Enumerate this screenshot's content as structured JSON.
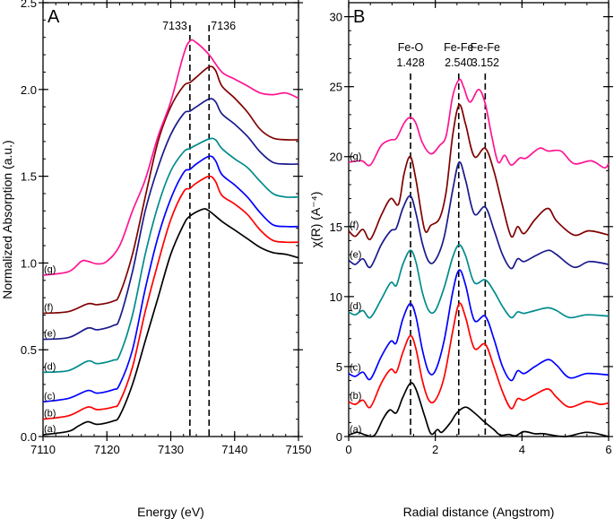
{
  "chart_data": [
    {
      "type": "line",
      "panel_label": "A",
      "xlabel": "Energy (eV)",
      "ylabel": "Normalized Absorption (a.u.)",
      "xlim": [
        7110,
        7150
      ],
      "ylim": [
        0,
        2.5
      ],
      "xticks": [
        7110,
        7120,
        7130,
        7140,
        7150
      ],
      "yticks": [
        "0.0",
        "0.5",
        "1.0",
        "1.5",
        "2.0",
        "2.5"
      ],
      "grid": false,
      "annotations": [
        {
          "x": 7133,
          "label": "7133"
        },
        {
          "x": 7136,
          "label": "7136"
        }
      ],
      "series": [
        {
          "label": "(a)",
          "color": "#000000",
          "x": [
            7110,
            7114,
            7115.5,
            7117,
            7118.5,
            7121,
            7122,
            7124,
            7126,
            7128,
            7130,
            7132,
            7133,
            7135,
            7136,
            7138,
            7140,
            7142,
            7144,
            7146,
            7148,
            7150
          ],
          "y": [
            0.01,
            0.03,
            0.06,
            0.085,
            0.07,
            0.09,
            0.12,
            0.3,
            0.55,
            0.8,
            1.05,
            1.22,
            1.27,
            1.31,
            1.3,
            1.24,
            1.19,
            1.14,
            1.09,
            1.06,
            1.05,
            1.03
          ]
        },
        {
          "label": "(b)",
          "color": "#ff0000",
          "x": [
            7110,
            7114,
            7117,
            7118.5,
            7121,
            7122,
            7124,
            7126,
            7128,
            7130,
            7132,
            7133,
            7134,
            7136,
            7137,
            7138,
            7140,
            7142,
            7144,
            7146,
            7148,
            7150
          ],
          "y": [
            0.1,
            0.12,
            0.17,
            0.155,
            0.17,
            0.2,
            0.4,
            0.72,
            1.0,
            1.25,
            1.41,
            1.43,
            1.46,
            1.5,
            1.47,
            1.39,
            1.34,
            1.28,
            1.19,
            1.13,
            1.12,
            1.12
          ]
        },
        {
          "label": "(c)",
          "color": "#0000ff",
          "x": [
            7110,
            7114,
            7117,
            7118.5,
            7121,
            7122,
            7124,
            7126,
            7128,
            7130,
            7132,
            7133,
            7134,
            7136,
            7137,
            7138,
            7140,
            7142,
            7144,
            7146,
            7148,
            7150
          ],
          "y": [
            0.2,
            0.22,
            0.265,
            0.25,
            0.27,
            0.3,
            0.5,
            0.85,
            1.15,
            1.37,
            1.52,
            1.54,
            1.57,
            1.615,
            1.59,
            1.51,
            1.45,
            1.38,
            1.29,
            1.22,
            1.21,
            1.21
          ]
        },
        {
          "label": "(d)",
          "color": "#008b8b",
          "x": [
            7110,
            7114,
            7117,
            7118.5,
            7121,
            7122,
            7124,
            7126,
            7128,
            7130,
            7132,
            7133,
            7134,
            7136,
            7137,
            7138,
            7140,
            7142,
            7144,
            7146,
            7148,
            7150
          ],
          "y": [
            0.37,
            0.38,
            0.435,
            0.42,
            0.44,
            0.47,
            0.7,
            1.05,
            1.33,
            1.53,
            1.64,
            1.66,
            1.68,
            1.715,
            1.71,
            1.66,
            1.6,
            1.55,
            1.47,
            1.4,
            1.38,
            1.38
          ]
        },
        {
          "label": "(e)",
          "color": "#1a1a8c",
          "x": [
            7110,
            7114,
            7117,
            7118.5,
            7121,
            7122,
            7124,
            7126,
            7128,
            7130,
            7132,
            7133,
            7134,
            7136,
            7137,
            7138,
            7140,
            7142,
            7144,
            7146,
            7148,
            7150
          ],
          "y": [
            0.56,
            0.57,
            0.625,
            0.615,
            0.64,
            0.68,
            0.95,
            1.3,
            1.55,
            1.74,
            1.86,
            1.875,
            1.9,
            1.945,
            1.93,
            1.86,
            1.8,
            1.73,
            1.64,
            1.58,
            1.57,
            1.57
          ]
        },
        {
          "label": "(f)",
          "color": "#800000",
          "x": [
            7110,
            7114,
            7117,
            7118.5,
            7121,
            7122,
            7124,
            7126,
            7128,
            7130,
            7132,
            7133,
            7134,
            7136,
            7137,
            7138,
            7140,
            7142,
            7144,
            7146,
            7148,
            7150
          ],
          "y": [
            0.71,
            0.72,
            0.765,
            0.76,
            0.78,
            0.82,
            1.05,
            1.38,
            1.7,
            1.9,
            2.02,
            2.04,
            2.07,
            2.13,
            2.11,
            2.02,
            1.95,
            1.87,
            1.77,
            1.72,
            1.71,
            1.71
          ]
        },
        {
          "label": "(g)",
          "color": "#ff1493",
          "x": [
            7110,
            7114,
            7116,
            7117,
            7118.5,
            7120,
            7122,
            7124,
            7126,
            7128,
            7130,
            7132,
            7133,
            7134,
            7136,
            7138,
            7140,
            7142,
            7144,
            7146,
            7148,
            7150
          ],
          "y": [
            0.93,
            0.95,
            1.01,
            1.01,
            0.995,
            1.01,
            1.1,
            1.3,
            1.48,
            1.73,
            1.93,
            2.2,
            2.28,
            2.27,
            2.2,
            2.1,
            2.06,
            2.02,
            1.98,
            1.97,
            1.98,
            1.95
          ]
        }
      ]
    },
    {
      "type": "line",
      "panel_label": "B",
      "xlabel": "Radial distance (Angstrom)",
      "ylabel": "χ(R) (A⁻⁴)",
      "xlim": [
        0,
        6
      ],
      "ylim": [
        0,
        31
      ],
      "xticks": [
        0,
        2,
        4,
        6
      ],
      "yticks": [
        0,
        5,
        10,
        15,
        20,
        25,
        30
      ],
      "grid": false,
      "annotations": [
        {
          "x": 1.428,
          "label": "Fe-O",
          "value": "1.428"
        },
        {
          "x": 2.54,
          "label": "Fe-Fe",
          "value": "2.540"
        },
        {
          "x": 3.152,
          "label": "Fe-Fe",
          "value": "3.152"
        }
      ],
      "series": [
        {
          "label": "(a)",
          "color": "#000000",
          "x": [
            0,
            0.2,
            0.4,
            0.6,
            0.8,
            0.95,
            1.1,
            1.25,
            1.42,
            1.55,
            1.75,
            1.9,
            2.05,
            2.15,
            2.35,
            2.5,
            2.7,
            2.9,
            3.15,
            3.35,
            3.5,
            3.7,
            3.85,
            4.05,
            4.3,
            4.5,
            5,
            5.5,
            6
          ],
          "y": [
            0.1,
            0.3,
            0.1,
            0.1,
            1.3,
            1.9,
            1.7,
            2.8,
            3.8,
            3.4,
            1.5,
            0.2,
            0.5,
            0.3,
            1.0,
            1.7,
            2.1,
            1.7,
            1.0,
            0.5,
            0.1,
            0.15,
            0.05,
            0.35,
            0.2,
            0.2,
            0,
            0.3,
            0
          ]
        },
        {
          "label": "(b)",
          "color": "#ff0000",
          "x": [
            0,
            0.15,
            0.33,
            0.5,
            0.75,
            0.97,
            1.1,
            1.25,
            1.42,
            1.55,
            1.7,
            1.85,
            2.0,
            2.2,
            2.4,
            2.55,
            2.7,
            2.9,
            3.15,
            3.35,
            3.55,
            3.75,
            3.9,
            4.05,
            4.3,
            4.6,
            4.8,
            5.1,
            5.5,
            5.8,
            6
          ],
          "y": [
            2.5,
            2.3,
            2.6,
            2.1,
            3.8,
            4.8,
            4.6,
            6.0,
            7.2,
            6.3,
            4.0,
            2.6,
            2.6,
            4.2,
            7.5,
            9.5,
            8.5,
            6.3,
            6.6,
            5.0,
            3.2,
            2.0,
            2.7,
            2.6,
            3.0,
            3.4,
            2.8,
            2.1,
            2.5,
            2.3,
            2.4
          ]
        },
        {
          "label": "(c)",
          "color": "#0000ff",
          "x": [
            0,
            0.15,
            0.33,
            0.5,
            0.75,
            0.97,
            1.1,
            1.25,
            1.42,
            1.55,
            1.7,
            1.85,
            2.0,
            2.2,
            2.4,
            2.55,
            2.7,
            2.9,
            3.15,
            3.35,
            3.55,
            3.75,
            3.9,
            4.05,
            4.3,
            4.6,
            4.8,
            5.1,
            5.5,
            6
          ],
          "y": [
            4.5,
            4.3,
            4.6,
            4.1,
            5.7,
            6.8,
            6.7,
            8.4,
            9.5,
            8.6,
            6.2,
            4.6,
            4.7,
            6.8,
            10.3,
            11.9,
            10.8,
            8.3,
            8.6,
            7.0,
            5.0,
            4.0,
            4.7,
            4.5,
            5.0,
            5.5,
            5.1,
            4.2,
            4.5,
            4.4
          ]
        },
        {
          "label": "(d)",
          "color": "#008b8b",
          "x": [
            0,
            0.15,
            0.33,
            0.5,
            0.75,
            0.97,
            1.1,
            1.25,
            1.42,
            1.55,
            1.7,
            1.85,
            2.0,
            2.2,
            2.4,
            2.55,
            2.7,
            2.9,
            3.15,
            3.35,
            3.55,
            3.75,
            3.9,
            4.05,
            4.3,
            4.6,
            4.8,
            5.1,
            5.5,
            6
          ],
          "y": [
            8.9,
            8.7,
            9.0,
            8.5,
            9.8,
            11.0,
            10.8,
            12.3,
            13.3,
            12.5,
            10.3,
            9.0,
            9.0,
            10.6,
            12.8,
            13.7,
            12.9,
            11.0,
            11.2,
            10.4,
            9.3,
            8.5,
            8.9,
            8.8,
            9.0,
            9.2,
            9.0,
            8.5,
            8.7,
            8.6
          ]
        },
        {
          "label": "(e)",
          "color": "#1a1a8c",
          "x": [
            0,
            0.15,
            0.33,
            0.5,
            0.75,
            0.97,
            1.1,
            1.25,
            1.42,
            1.55,
            1.7,
            1.85,
            2.0,
            2.2,
            2.4,
            2.55,
            2.7,
            2.9,
            3.15,
            3.35,
            3.55,
            3.75,
            3.9,
            4.05,
            4.3,
            4.6,
            4.8,
            5.2,
            5.55,
            6
          ],
          "y": [
            12.6,
            12.3,
            12.7,
            12.1,
            13.7,
            14.7,
            14.9,
            16.3,
            17.2,
            16.0,
            13.8,
            12.5,
            12.6,
            14.2,
            17.6,
            19.6,
            18.3,
            15.9,
            16.4,
            14.8,
            13.0,
            12.0,
            12.7,
            12.5,
            12.9,
            13.3,
            13.0,
            12.1,
            12.5,
            12.3
          ]
        },
        {
          "label": "(f)",
          "color": "#800000",
          "x": [
            0,
            0.15,
            0.33,
            0.5,
            0.75,
            0.97,
            1.15,
            1.28,
            1.42,
            1.55,
            1.75,
            1.9,
            2.1,
            2.25,
            2.4,
            2.55,
            2.7,
            2.9,
            3.15,
            3.35,
            3.55,
            3.75,
            3.9,
            4.05,
            4.3,
            4.6,
            4.8,
            5.2,
            5.55,
            6
          ],
          "y": [
            14.7,
            14.3,
            14.8,
            14.1,
            15.8,
            17.0,
            16.6,
            18.8,
            20.0,
            18.4,
            14.8,
            15.1,
            15.6,
            17.5,
            21.5,
            23.7,
            22.3,
            20.0,
            20.6,
            19.0,
            16.5,
            14.3,
            15.0,
            14.5,
            15.5,
            16.3,
            15.4,
            14.4,
            14.7,
            14.4
          ]
        },
        {
          "label": "(g)",
          "color": "#ff1493",
          "x": [
            0,
            0.3,
            0.5,
            0.75,
            0.97,
            1.1,
            1.28,
            1.42,
            1.55,
            1.7,
            1.9,
            2.1,
            2.25,
            2.4,
            2.55,
            2.65,
            2.8,
            3.0,
            3.15,
            3.3,
            3.45,
            3.6,
            3.75,
            3.95,
            4.1,
            4.4,
            4.6,
            4.9,
            5.2,
            5.6,
            5.9,
            6
          ],
          "y": [
            19.6,
            19.7,
            19.4,
            20.8,
            21.2,
            21.3,
            22.4,
            22.8,
            22.4,
            21.0,
            20.2,
            20.8,
            21.5,
            24.3,
            25.5,
            25.0,
            23.9,
            24.8,
            23.8,
            21.5,
            19.6,
            20.1,
            19.4,
            19.9,
            19.9,
            20.6,
            20.4,
            20.4,
            19.5,
            19.7,
            19.2,
            19.5
          ]
        }
      ]
    }
  ]
}
